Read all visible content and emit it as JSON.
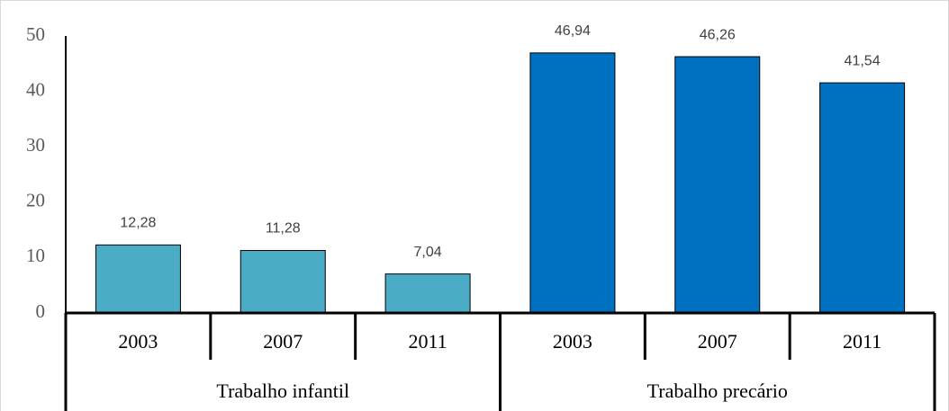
{
  "chart_data": {
    "type": "bar",
    "series": [
      {
        "name": "Trabalho infantil",
        "color": "#4bacc6",
        "categories": [
          "2003",
          "2007",
          "2011"
        ],
        "values": [
          12.28,
          11.28,
          7.04
        ],
        "value_labels": [
          "12,28",
          "11,28",
          "7,04"
        ]
      },
      {
        "name": "Trabalho precário",
        "color": "#0070c0",
        "categories": [
          "2003",
          "2007",
          "2011"
        ],
        "values": [
          46.94,
          46.26,
          41.54
        ],
        "value_labels": [
          "46,94",
          "46,26",
          "41,54"
        ]
      }
    ],
    "ylim": [
      0,
      50
    ],
    "yticks": [
      0,
      10,
      20,
      30,
      40,
      50
    ],
    "grid": false
  }
}
